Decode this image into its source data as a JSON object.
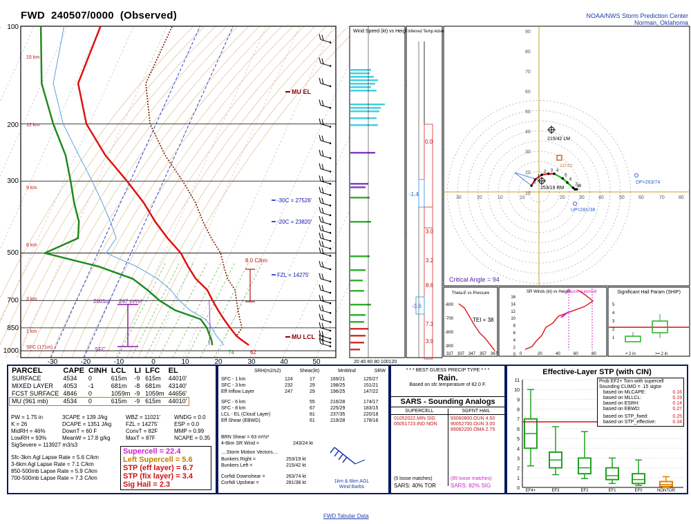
{
  "header": {
    "station": "FWD",
    "time": "240507/0000",
    "type": "(Observed)"
  },
  "org": {
    "line1": "NOAA/NWS Storm Prediction Center",
    "line2": "Norman, Oklahoma"
  },
  "skewt": {
    "pressure_labels": [
      "100",
      "200",
      "300",
      "500",
      "700",
      "850",
      "1000"
    ],
    "height_labels": [
      "15 km",
      "12 km",
      "9 km",
      "6 km",
      "3 km",
      "1 km",
      "SFC (171m)"
    ],
    "temp_labels": [
      "-30",
      "-20",
      "-10",
      "0",
      "10",
      "20",
      "30",
      "40",
      "50"
    ],
    "annotations": {
      "mu_el": "MU EL",
      "mu_lcl": "MU LCL",
      "m30c": "-30C = 27526'",
      "m20c": "-20C = 23820'",
      "fzl": "FZL = 14275'",
      "cam": "8.0 C/km",
      "eff_top": "2601m",
      "eff_srh": "247 m²/s²",
      "sfc": "SFC",
      "t_sfc": "74",
      "td_sfc": "62"
    }
  },
  "wind_panel": {
    "title": "Wind Speed (kt) vs Height",
    "ticks": "20 40 60 80 100120"
  },
  "tadv_panel": {
    "title": "Inferred Temp Advection (C / hr)",
    "values": [
      "0.0",
      "-1.4",
      "3.0",
      "3.2",
      "8.6",
      "-3.6",
      "7.3",
      "3.9"
    ]
  },
  "hodograph": {
    "axis_labels": [
      "10",
      "20",
      "30",
      "40",
      "50",
      "60",
      "70",
      "80",
      "90"
    ],
    "x_labels": [
      "30",
      "20",
      "10",
      "10",
      "20",
      "30",
      "40",
      "50",
      "60",
      "70",
      "80"
    ],
    "motion_labels": {
      "lm": "215/42 LM",
      "rm": "253/19 RM",
      "dp": "DP=263/74",
      "up": "UP=281/38",
      "mean": "237/32"
    },
    "critical_angle": "Critical Angle = 94",
    "pts": [
      "0",
      "1",
      "2",
      "3",
      "4",
      "5",
      "6",
      "7",
      "8",
      "9"
    ]
  },
  "theta_panel": {
    "title": "Theta-E vs Pressure",
    "tei": "TEI = 38",
    "y_labels": [
      "-600",
      "-700",
      "-800",
      "-900"
    ],
    "x_labels": [
      "327",
      "337",
      "347",
      "357",
      "367"
    ]
  },
  "srw_panel": {
    "title": "SR Winds (kt) vs Height",
    "classic": "classic supercell",
    "y_labels": [
      "16",
      "14",
      "12",
      "10",
      "8",
      "6",
      "4",
      "2",
      "0"
    ],
    "x_labels": [
      "0",
      "20",
      "40",
      "60",
      "80"
    ]
  },
  "ship_panel": {
    "title": "Significant Hail Param (SHIP)",
    "y_labels": [
      "5",
      "4",
      "3",
      "2",
      "1"
    ],
    "x_labels": [
      "< 2 in",
      ">= 2 in"
    ]
  },
  "parcel_table": {
    "headers": [
      "PARCEL",
      "CAPE",
      "CINH",
      "LCL",
      "LI",
      "LFC",
      "EL"
    ],
    "rows": [
      [
        "SURFACE",
        "4534",
        "0",
        "615m",
        "-9",
        "615m",
        "44010'"
      ],
      [
        "MIXED LAYER",
        "4053",
        "-1",
        "681m",
        "-8",
        "681m",
        "43140'"
      ],
      [
        "FCST SURFACE",
        "4846",
        "0",
        "1059m",
        "-9",
        "1059m",
        "44656'"
      ],
      [
        "MU (961 mb)",
        "4534",
        "0",
        "615m",
        "-9",
        "615m",
        "44010'"
      ]
    ]
  },
  "thermo": {
    "col1": [
      "PW = 1.75 in",
      "K = 26",
      "MidRH = 46%",
      "LowRH = 93%",
      "SigSevere = 113927 m3/s3"
    ],
    "col2": [
      "3CAPE = 139 J/kg",
      "DCAPE = 1351 J/kg",
      "DownT = 60 F",
      "MeanW = 17.8 g/kg"
    ],
    "col3": [
      "WBZ = 11021'",
      "FZL = 14275'",
      "ConvT = 82F",
      "MaxT = 87F"
    ],
    "col4": [
      "WNDG = 0.0",
      "ESP = 0.0",
      "MMP = 0.99",
      "NCAPE = 0.35"
    ]
  },
  "lapse_rates": [
    "Sfc-3km Agl Lapse Rate = 5.6 C/km",
    "3-6km Agl Lapse Rate = 7.1 C/km",
    "850-500mb Lapse Rate = 5.9 C/km",
    "700-500mb Lapse Rate = 7.3 C/km"
  ],
  "composite": {
    "supercell": "Supercell = 22.4",
    "left_supercell": "Left Supercell = 5.6",
    "stp_eff": "STP (eff layer) = 6.7",
    "stp_fix": "STP (fix layer) = 3.4",
    "sig_hail": "Sig Hail = 2.3",
    "colors": {
      "supercell": "#d020d0",
      "left": "#c08000",
      "stp": "#d01010"
    }
  },
  "kinematics": {
    "headers": [
      "SRH(m2/s2)",
      "Shear(kt)",
      "MnWind",
      "SRW"
    ],
    "rows": [
      [
        "SFC - 1 km",
        "124",
        "17",
        "169/21",
        "125/27"
      ],
      [
        "SFC - 3 km",
        "232",
        "29",
        "198/25",
        "151/21"
      ],
      [
        "Eff Inflow Layer",
        "247",
        "29",
        "196/25",
        "147/22"
      ],
      [
        "SFC - 6 km",
        "",
        "55",
        "216/28",
        "174/17"
      ],
      [
        "SFC - 8 km",
        "",
        "67",
        "225/29",
        "183/15"
      ],
      [
        "LCL - EL (Cloud Layer)",
        "",
        "81",
        "237/35",
        "220/18"
      ],
      [
        "Eff Shear (EBWD)",
        "",
        "61",
        "219/28",
        "178/16"
      ]
    ],
    "brn": "BRN Shear = 63 m²/s²",
    "sr_wind": "4-6km SR Wind =",
    "sr_wind_val": "243/24 kt",
    "storm_motion": "....Storm Motion Vectors....",
    "bunkers_right": "Bunkers Right =",
    "bunkers_right_val": "253/19 kt",
    "bunkers_left": "Bunkers Left =",
    "bunkers_left_val": "215/42 kt",
    "corfidi_down": "Corfidi Downshear =",
    "corfidi_down_val": "263/74 kt",
    "corfidi_up": "Corfidi Upshear =",
    "corfidi_up_val": "281/38 kt",
    "barb_caption1": "1km & 6km AGL",
    "barb_caption2": "Wind Barbs"
  },
  "precip": {
    "title": "* * * BEST GUESS PRECIP TYPE * * *",
    "type": "Rain.",
    "note": "Based on sfc temperature of 82.0 F."
  },
  "sars": {
    "title": "SARS - Sounding Analogs",
    "supercell_h": "SUPERCELL",
    "hail_h": "SGFNT HAIL",
    "supercell_rows": [
      "01052022.MIN  SIG",
      "05051723.IND  NON"
    ],
    "hail_rows": [
      "93060800.OUN  4.50",
      "90052700.OUN  3.00",
      "89082200.OMA  2.75"
    ],
    "loose_left": "(5 loose matches)",
    "loose_right": "(85 loose matches)",
    "tor": "SARS:  40% TOR",
    "sig": "SARS:  82% SIG"
  },
  "stp": {
    "title": "Effective-Layer STP (with CIN)",
    "legend_title1": "Prob EF2+ Torn with supercell",
    "legend_title2": "Sounding CLIMO = .15 sigtor",
    "legend": [
      [
        "based on MLCAPE:",
        "0.16"
      ],
      [
        "based on MLLCL:",
        "0.19"
      ],
      [
        "based on ESRH:",
        "0.14"
      ],
      [
        "based on EBWD:",
        "0.27"
      ],
      [
        "based on STP_fixed:",
        "0.25"
      ],
      [
        "based on STP_effective:",
        "0.34"
      ]
    ],
    "y_labels": [
      "11",
      "10",
      "9",
      "8",
      "7",
      "6",
      "5",
      "4",
      "3",
      "2",
      "1",
      "0"
    ],
    "categories": [
      "EF4+",
      "EF3",
      "EF2",
      "EF1",
      "EF0",
      "NONTOR"
    ]
  },
  "chart_data": [
    {
      "type": "line",
      "title": "FWD 240507/0000 (Observed)",
      "xlabel": "",
      "ylabel": "",
      "y_pressure_mb": [
        961,
        925,
        900,
        850,
        800,
        750,
        700,
        650,
        600,
        550,
        500,
        450,
        400,
        350,
        300,
        250,
        200,
        150,
        100
      ],
      "series": [
        {
          "name": "",
          "values": [
            28,
            25,
            23,
            20,
            17,
            14,
            11,
            8,
            3,
            -1,
            -5,
            -11,
            -17,
            -23,
            -31,
            -41,
            -51,
            -59,
            -60
          ]
        },
        {
          "name": "",
          "values": [
            17,
            16,
            15,
            13,
            10,
            1,
            -5,
            -10,
            -16,
            -28,
            -46,
            -38,
            -40,
            -44,
            -48,
            -53,
            -61,
            -70,
            -78
          ]
        }
      ],
      "xlim": [
        -30,
        50
      ]
    },
    {
      "type": "scatter",
      "title": "",
      "x_label_units": "kt",
      "hodograph_uv": [
        [
          -8,
          12
        ],
        [
          -4,
          24
        ],
        [
          3,
          33
        ],
        [
          10,
          35
        ],
        [
          16,
          35
        ],
        [
          25,
          26
        ],
        [
          30,
          18
        ],
        [
          36,
          8
        ],
        [
          38,
          5
        ],
        [
          40,
          5
        ]
      ],
      "xlim": [
        -30,
        80
      ],
      "ylim": [
        -10,
        90
      ]
    },
    {
      "type": "bar",
      "title": "Effective-Layer STP (with CIN)",
      "categories": [
        "EF4+",
        "EF3",
        "EF2",
        "EF1",
        "EF0",
        "NONTOR"
      ],
      "series": [
        {
          "name": "",
          "values": [
            [
              2.2,
              4.0,
              5.5,
              7.0,
              10.0
            ],
            [
              1.3,
              2.0,
              2.8,
              3.6,
              6.2
            ],
            [
              0.9,
              1.4,
              2.0,
              3.0,
              5.7
            ],
            [
              0.4,
              0.8,
              1.2,
              2.0,
              3.0
            ],
            [
              0.2,
              0.4,
              0.8,
              1.4,
              2.8
            ],
            [
              0.0,
              0.1,
              0.3,
              0.6,
              1.1
            ]
          ]
        }
      ],
      "ylim": [
        0,
        11
      ],
      "stp_eff_line": 6.7
    }
  ]
}
